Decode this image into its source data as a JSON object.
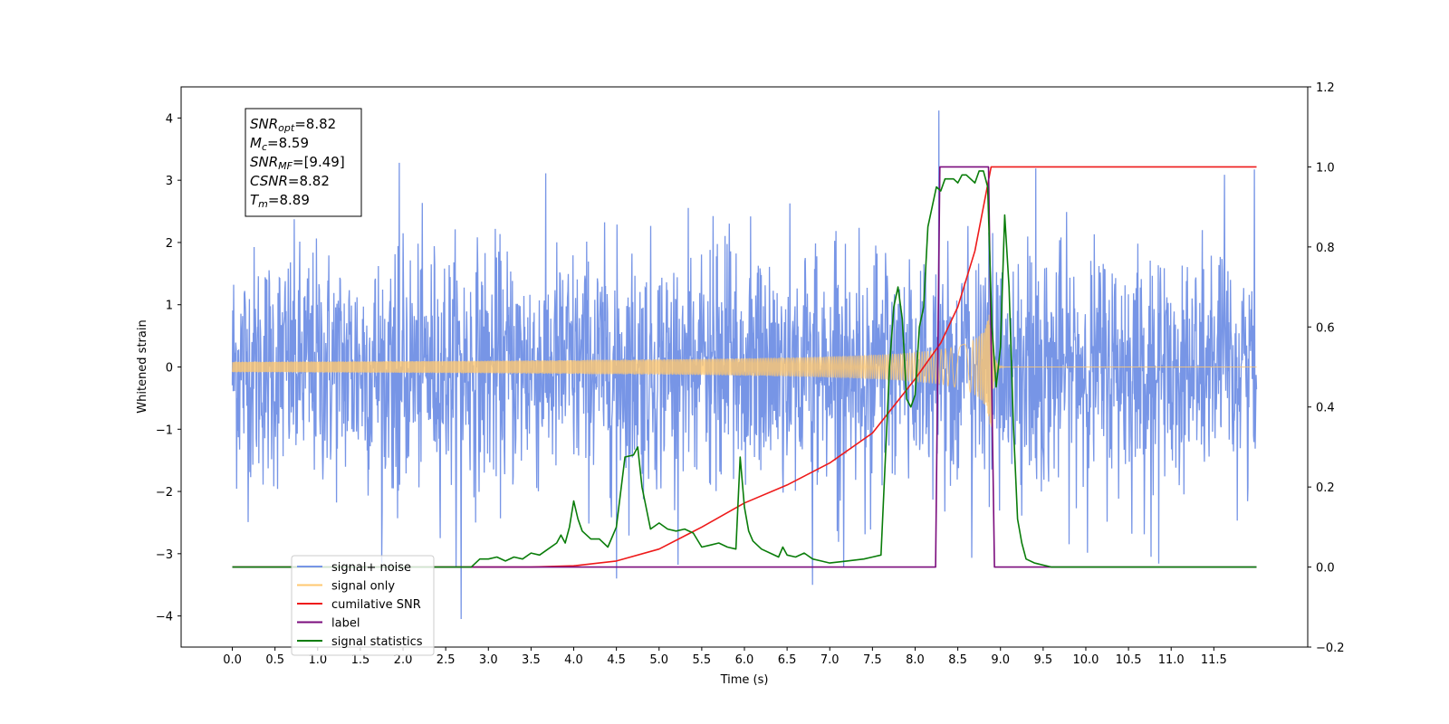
{
  "chart_data": {
    "type": "line",
    "xlabel": "Time (s)",
    "ylabel": "Whitened strain",
    "xlim": [
      -0.6,
      12.6
    ],
    "ylim_left": [
      -4.5,
      4.5
    ],
    "ylim_right": [
      -0.2,
      1.2
    ],
    "x_ticks": [
      "0.0",
      "0.5",
      "1.0",
      "1.5",
      "2.0",
      "2.5",
      "3.0",
      "3.5",
      "4.0",
      "4.5",
      "5.0",
      "5.5",
      "6.0",
      "6.5",
      "7.0",
      "7.5",
      "8.0",
      "8.5",
      "9.0",
      "9.5",
      "10.0",
      "10.5",
      "11.0",
      "11.5"
    ],
    "y_ticks_left": [
      "4",
      "3",
      "2",
      "1",
      "0",
      "−1",
      "−2",
      "−3",
      "−4"
    ],
    "y_ticks_right": [
      "1.2",
      "1.0",
      "0.8",
      "0.6",
      "0.4",
      "0.2",
      "0.0",
      "−0.2"
    ],
    "annotation": {
      "lines": [
        {
          "sym": "SNR",
          "sub": "opt",
          "val": "=8.82"
        },
        {
          "sym": "M",
          "sub": "c",
          "val": "=8.59"
        },
        {
          "sym": "SNR",
          "sub": "MF",
          "val": "=[9.49]"
        },
        {
          "sym": "CSNR",
          "sub": "",
          "val": "=8.82"
        },
        {
          "sym": "T",
          "sub": "m",
          "val": "=8.89"
        }
      ]
    },
    "legend_placement": "lower-left",
    "series": [
      {
        "name": "signal+ noise",
        "color": "#7795e6",
        "axis": "left",
        "description_type": "noise",
        "x_range": [
          0.0,
          12.0
        ],
        "amplitude_std": 0.95,
        "peaks": [
          [
            8.28,
            4.12
          ],
          [
            2.68,
            -4.05
          ],
          [
            6.8,
            -3.5
          ],
          [
            4.5,
            -3.4
          ]
        ]
      },
      {
        "name": "signal only",
        "color": "#ffc870",
        "axis": "left",
        "description_type": "chirp",
        "x_range": [
          0.0,
          12.0
        ],
        "merger_time": 8.89,
        "peak_amplitude": 1.1
      },
      {
        "name": "cumilative SNR",
        "color": "#ee1a1a",
        "axis": "right",
        "x": [
          0.0,
          3.0,
          3.5,
          4.0,
          4.5,
          5.0,
          5.5,
          6.0,
          6.5,
          7.0,
          7.5,
          8.0,
          8.3,
          8.5,
          8.7,
          8.8,
          8.89,
          12.0
        ],
        "y": [
          0.0,
          0.0,
          0.0,
          0.003,
          0.015,
          0.045,
          0.1,
          0.16,
          0.205,
          0.26,
          0.335,
          0.47,
          0.56,
          0.65,
          0.79,
          0.9,
          1.0,
          1.0
        ]
      },
      {
        "name": "label",
        "color": "#7b0c7d",
        "axis": "right",
        "x": [
          0.0,
          8.24,
          8.29,
          8.86,
          8.93,
          12.0
        ],
        "y": [
          0.0,
          0.0,
          1.0,
          1.0,
          0.0,
          0.0
        ]
      },
      {
        "name": "signal statistics",
        "color": "#0a7d0a",
        "axis": "right",
        "x": [
          0.0,
          2.8,
          2.9,
          3.0,
          3.1,
          3.2,
          3.3,
          3.4,
          3.5,
          3.6,
          3.7,
          3.8,
          3.85,
          3.9,
          3.95,
          4.0,
          4.05,
          4.1,
          4.2,
          4.3,
          4.4,
          4.5,
          4.6,
          4.7,
          4.75,
          4.8,
          4.9,
          5.0,
          5.1,
          5.2,
          5.3,
          5.4,
          5.5,
          5.6,
          5.7,
          5.8,
          5.9,
          5.95,
          6.0,
          6.05,
          6.1,
          6.2,
          6.3,
          6.4,
          6.45,
          6.5,
          6.6,
          6.7,
          6.8,
          6.9,
          7.0,
          7.2,
          7.4,
          7.5,
          7.6,
          7.7,
          7.75,
          7.8,
          7.85,
          7.9,
          7.95,
          8.0,
          8.05,
          8.1,
          8.15,
          8.2,
          8.25,
          8.3,
          8.35,
          8.4,
          8.45,
          8.5,
          8.55,
          8.6,
          8.65,
          8.7,
          8.75,
          8.8,
          8.85,
          8.9,
          8.95,
          9.0,
          9.05,
          9.1,
          9.15,
          9.2,
          9.25,
          9.3,
          9.4,
          9.5,
          9.6,
          9.8,
          10.0,
          12.0
        ],
        "y": [
          0.0,
          0.0,
          0.02,
          0.02,
          0.025,
          0.015,
          0.025,
          0.02,
          0.035,
          0.03,
          0.045,
          0.06,
          0.08,
          0.06,
          0.1,
          0.165,
          0.12,
          0.09,
          0.07,
          0.07,
          0.05,
          0.1,
          0.275,
          0.28,
          0.3,
          0.2,
          0.095,
          0.11,
          0.095,
          0.09,
          0.095,
          0.085,
          0.05,
          0.055,
          0.06,
          0.05,
          0.045,
          0.275,
          0.15,
          0.09,
          0.065,
          0.045,
          0.035,
          0.025,
          0.05,
          0.03,
          0.025,
          0.035,
          0.02,
          0.015,
          0.01,
          0.015,
          0.02,
          0.025,
          0.03,
          0.5,
          0.65,
          0.7,
          0.62,
          0.42,
          0.4,
          0.43,
          0.6,
          0.65,
          0.85,
          0.9,
          0.95,
          0.94,
          0.97,
          0.97,
          0.97,
          0.96,
          0.98,
          0.98,
          0.97,
          0.96,
          0.99,
          0.99,
          0.95,
          0.6,
          0.45,
          0.55,
          0.88,
          0.7,
          0.36,
          0.12,
          0.06,
          0.02,
          0.01,
          0.005,
          0.0,
          0.0,
          0.0,
          0.0
        ]
      }
    ]
  }
}
